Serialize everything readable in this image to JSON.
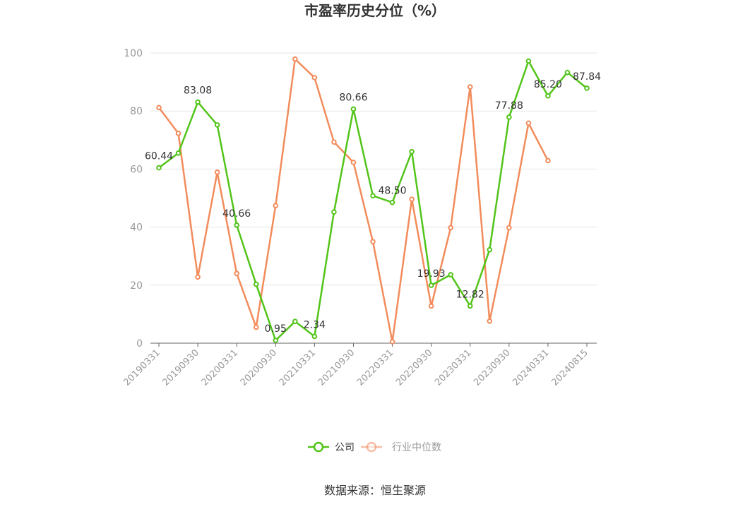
{
  "chart_data": {
    "type": "line",
    "title": "市盈率历史分位（%）",
    "xlabel": "",
    "ylabel": "",
    "ylim": [
      0,
      100
    ],
    "yticks": [
      0,
      20,
      40,
      60,
      80,
      100
    ],
    "grid": true,
    "legend_position": "bottom",
    "x": [
      "20190331",
      "20190630",
      "20190930",
      "20191231",
      "20200331",
      "20200630",
      "20200930",
      "20201231",
      "20210331",
      "20210630",
      "20210930",
      "20211231",
      "20220331",
      "20220630",
      "20220930",
      "20221231",
      "20230331",
      "20230630",
      "20230930",
      "20231231",
      "20240331",
      "20240630",
      "20240815"
    ],
    "xtick_labels": [
      "20190331",
      "20190930",
      "20200331",
      "20200930",
      "20210331",
      "20210930",
      "20220331",
      "20220930",
      "20230331",
      "20230930",
      "20240331",
      "20240815"
    ],
    "series": [
      {
        "name": "公司",
        "color": "#52c41a",
        "values": [
          60.44,
          65.5,
          83.08,
          75.2,
          40.66,
          20.3,
          0.95,
          7.5,
          2.34,
          45.2,
          80.66,
          50.8,
          48.5,
          66.0,
          19.93,
          23.6,
          12.82,
          32.2,
          77.88,
          97.2,
          85.2,
          93.3,
          87.84
        ],
        "data_labels": [
          {
            "index": 0,
            "text": "60.44"
          },
          {
            "index": 2,
            "text": "83.08"
          },
          {
            "index": 4,
            "text": "40.66"
          },
          {
            "index": 6,
            "text": "0.95"
          },
          {
            "index": 8,
            "text": "2.34"
          },
          {
            "index": 10,
            "text": "80.66"
          },
          {
            "index": 12,
            "text": "48.50"
          },
          {
            "index": 14,
            "text": "19.93"
          },
          {
            "index": 16,
            "text": "12.82"
          },
          {
            "index": 18,
            "text": "77.88"
          },
          {
            "index": 20,
            "text": "85.20"
          },
          {
            "index": 22,
            "text": "87.84"
          }
        ]
      },
      {
        "name": "行业中位数",
        "color": "#f28c5c",
        "values": [
          81.2,
          72.3,
          22.8,
          58.9,
          24.0,
          5.5,
          47.4,
          97.9,
          91.5,
          69.3,
          62.3,
          35.0,
          0.5,
          49.6,
          12.8,
          39.8,
          88.3,
          7.6,
          39.8,
          75.8,
          62.9,
          null,
          null
        ]
      }
    ]
  },
  "source_text": "数据来源：恒生聚源"
}
